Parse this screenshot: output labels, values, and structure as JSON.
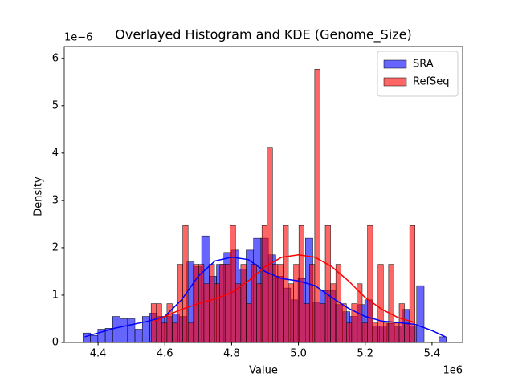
{
  "chart_data": {
    "type": "histogram",
    "title": "Overlayed Histogram and KDE (Genome_Size)",
    "x_label": "Value",
    "y_label": "Density",
    "x_offset_label": "1e6",
    "y_offset_label": "1e−6",
    "xlim": [
      4.2988,
      5.4916
    ],
    "ylim": [
      0,
      6.25
    ],
    "xticks": [
      4.4,
      4.6,
      4.8,
      {
        "value": 5,
        "label": "5.0"
      },
      5.2,
      5.4
    ],
    "yticks": [
      0,
      1,
      2,
      3,
      4,
      5,
      6
    ],
    "legend": "upper right",
    "alpha": 0.6,
    "series": [
      {
        "name": "SRA",
        "color": "#0000ff",
        "bins": [
          4.355,
          4.3772,
          4.3994,
          4.4216,
          4.4438,
          4.466,
          4.4882,
          4.5104,
          4.5326,
          4.5548,
          4.577,
          4.5992,
          4.6214,
          4.6436,
          4.6658,
          4.688,
          4.7102,
          4.7324,
          4.7546,
          4.7768,
          4.799,
          4.8212,
          4.8434,
          4.8656,
          4.8878,
          4.91,
          4.9322,
          4.9544,
          4.9766,
          4.9988,
          5.021,
          5.0432,
          5.0654,
          5.0876,
          5.1098,
          5.132,
          5.1542,
          5.1764,
          5.1986,
          5.2208,
          5.243,
          5.2652,
          5.2874,
          5.3096,
          5.3318,
          5.354,
          5.3762,
          5.3984,
          5.4206,
          5.4428
        ],
        "values": [
          0.2,
          0.15,
          0.28,
          0.3,
          0.55,
          0.5,
          0.5,
          0.28,
          0.55,
          0.62,
          0.55,
          0.55,
          0.6,
          0.55,
          1.7,
          1.6,
          2.25,
          1.4,
          1.65,
          1.9,
          1.95,
          1.55,
          1.95,
          2.2,
          2.2,
          1.85,
          1.4,
          1.15,
          0.9,
          1.35,
          2.2,
          0.85,
          1.1,
          1.1,
          0.8,
          0.65,
          0.55,
          0.8,
          0.9,
          0.35,
          0.35,
          0.4,
          0.35,
          0.7,
          0.35,
          1.2,
          0,
          0,
          0.12
        ],
        "kde_x": [
          4.36,
          4.45,
          4.55,
          4.6,
          4.65,
          4.7,
          4.75,
          4.8,
          4.85,
          4.9,
          4.95,
          5.0,
          5.05,
          5.1,
          5.15,
          5.2,
          5.25,
          5.3,
          5.35,
          5.4,
          5.44
        ],
        "kde_y": [
          0.12,
          0.3,
          0.45,
          0.55,
          0.9,
          1.4,
          1.72,
          1.8,
          1.75,
          1.5,
          1.35,
          1.3,
          1.2,
          0.95,
          0.72,
          0.55,
          0.45,
          0.42,
          0.38,
          0.25,
          0.12
        ]
      },
      {
        "name": "RefSeq",
        "color": "#ff0000",
        "bins": [
          4.559,
          4.5748,
          4.5906,
          4.6064,
          4.6222,
          4.638,
          4.6538,
          4.6696,
          4.6854,
          4.7012,
          4.717,
          4.7328,
          4.7486,
          4.7644,
          4.7802,
          4.796,
          4.8118,
          4.8276,
          4.8434,
          4.8592,
          4.875,
          4.8908,
          4.9066,
          4.9224,
          4.9382,
          4.954,
          4.9698,
          4.9856,
          5.0014,
          5.0172,
          5.033,
          5.0488,
          5.0646,
          5.0804,
          5.0962,
          5.112,
          5.1278,
          5.1436,
          5.1594,
          5.1752,
          5.191,
          5.2068,
          5.2226,
          5.2384,
          5.2542,
          5.27,
          5.2858,
          5.3016,
          5.3174,
          5.3332,
          5.349
        ],
        "values": [
          0.82,
          0.82,
          0.41,
          0.82,
          0.41,
          1.65,
          2.47,
          0.41,
          1.65,
          1.65,
          1.24,
          1.65,
          1.24,
          1.65,
          1.65,
          2.47,
          1.24,
          1.65,
          0.82,
          1.65,
          1.24,
          2.47,
          4.12,
          1.65,
          1.65,
          2.47,
          1.24,
          1.65,
          2.47,
          0.82,
          1.65,
          5.77,
          0.82,
          2.47,
          1.24,
          1.65,
          0.82,
          0.41,
          0.82,
          1.24,
          0.41,
          2.47,
          0.41,
          1.65,
          0.41,
          1.65,
          0.41,
          0.82,
          0.41,
          2.47
        ],
        "kde_x": [
          4.57,
          4.6,
          4.65,
          4.7,
          4.75,
          4.8,
          4.85,
          4.9,
          4.95,
          5.0,
          5.05,
          5.1,
          5.15,
          5.2,
          5.25,
          5.3,
          5.35
        ],
        "kde_y": [
          0.45,
          0.55,
          0.7,
          0.82,
          0.92,
          1.05,
          1.3,
          1.6,
          1.8,
          1.85,
          1.8,
          1.6,
          1.3,
          0.95,
          0.7,
          0.52,
          0.42
        ]
      }
    ]
  }
}
